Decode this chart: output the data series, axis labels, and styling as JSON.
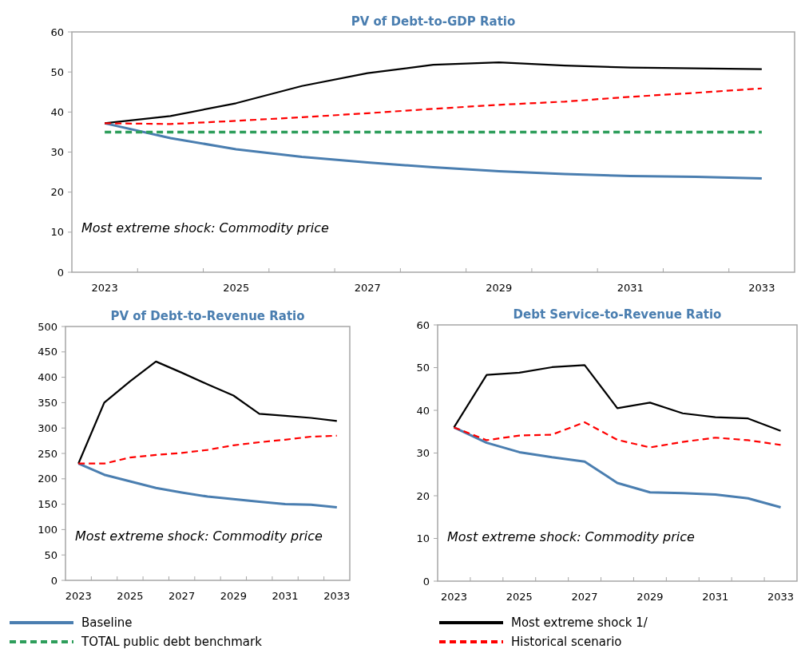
{
  "chart_data": [
    {
      "type": "line",
      "title": "PV of Debt-to-GDP Ratio",
      "categories": [
        "2023",
        null,
        "2025",
        null,
        "2027",
        null,
        "2029",
        null,
        "2031",
        null,
        "2033"
      ],
      "ylim": [
        0,
        60
      ],
      "yticks": [
        0,
        10,
        20,
        30,
        40,
        50,
        60
      ],
      "grid": false,
      "legend": "bottom",
      "annotations": [
        "Most extreme shock: Commodity price"
      ],
      "series": [
        {
          "name": "Baseline",
          "color": "#4a7eb0",
          "line_style": "solid",
          "values": [
            37.2,
            33.5,
            30.7,
            28.8,
            27.4,
            26.2,
            25.2,
            24.5,
            24.0,
            23.8,
            23.4
          ]
        },
        {
          "name": "TOTAL public debt benchmark",
          "color": "#2e9e5b",
          "line_style": "dashed",
          "values": [
            35,
            35,
            35,
            35,
            35,
            35,
            35,
            35,
            35,
            35,
            35
          ]
        },
        {
          "name": "Most extreme shock 1/",
          "color": "#000000",
          "line_style": "solid",
          "values": [
            37.2,
            39.0,
            42.2,
            46.5,
            49.7,
            51.8,
            52.4,
            51.6,
            51.1,
            50.9,
            50.7
          ]
        },
        {
          "name": "Historical scenario",
          "color": "#ff0000",
          "line_style": "dashed",
          "values": [
            37.2,
            37.0,
            37.8,
            38.7,
            39.7,
            40.8,
            41.8,
            42.6,
            43.8,
            44.8,
            45.9
          ]
        }
      ]
    },
    {
      "type": "line",
      "title": "PV of Debt-to-Revenue Ratio",
      "categories": [
        "2023",
        null,
        "2025",
        null,
        "2027",
        null,
        "2029",
        null,
        "2031",
        null,
        "2033"
      ],
      "ylim": [
        0,
        500
      ],
      "yticks": [
        0,
        50,
        100,
        150,
        200,
        250,
        300,
        350,
        400,
        450,
        500
      ],
      "grid": false,
      "annotations": [
        "Most extreme shock: Commodity price"
      ],
      "series": [
        {
          "color": "#4a7eb0",
          "line_style": "solid",
          "values": [
            230,
            208,
            195,
            182,
            173,
            165,
            160,
            155,
            150,
            149,
            144
          ]
        },
        {
          "color": "#000000",
          "line_style": "solid",
          "values": [
            230,
            350,
            392,
            431,
            409,
            386,
            364,
            328,
            324,
            320,
            314
          ]
        },
        {
          "color": "#ff0000",
          "line_style": "dashed",
          "values": [
            230,
            230,
            242,
            247,
            251,
            257,
            266,
            272,
            277,
            283,
            285
          ]
        }
      ]
    },
    {
      "type": "line",
      "title": "Debt Service-to-Revenue Ratio",
      "categories": [
        "2023",
        null,
        "2025",
        null,
        "2027",
        null,
        "2029",
        null,
        "2031",
        null,
        "2033"
      ],
      "ylim": [
        0,
        60
      ],
      "yticks": [
        0,
        10,
        20,
        30,
        40,
        50,
        60
      ],
      "grid": false,
      "annotations": [
        "Most extreme shock: Commodity price"
      ],
      "series": [
        {
          "color": "#4a7eb0",
          "line_style": "solid",
          "values": [
            36,
            32.4,
            30.2,
            29,
            28,
            23,
            20.8,
            20.6,
            20.3,
            19.4,
            17.3
          ]
        },
        {
          "color": "#000000",
          "line_style": "solid",
          "values": [
            36,
            48.3,
            48.8,
            50.1,
            50.6,
            40.5,
            41.8,
            39.3,
            38.4,
            38.1,
            35.2
          ]
        },
        {
          "color": "#ff0000",
          "line_style": "dashed",
          "values": [
            36,
            33,
            34.1,
            34.3,
            37.2,
            33.1,
            31.3,
            32.6,
            33.6,
            33,
            31.9
          ]
        }
      ]
    }
  ]
}
